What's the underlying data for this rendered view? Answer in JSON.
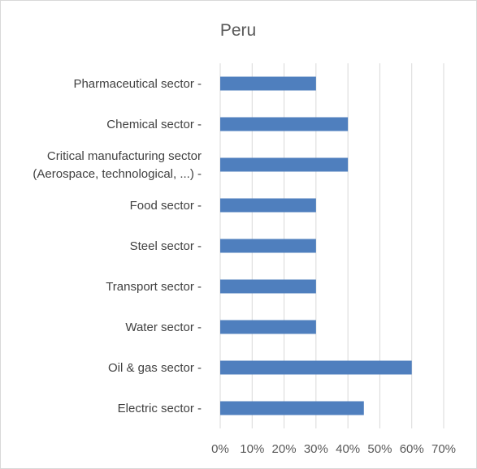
{
  "chart_data": {
    "type": "bar",
    "orientation": "horizontal",
    "title": "Peru",
    "xlabel": "",
    "ylabel": "",
    "categories": [
      [
        "Pharmaceutical sector -"
      ],
      [
        "Chemical sector -"
      ],
      [
        "Critical manufacturing sector",
        "(Aerospace, technological, ...) -"
      ],
      [
        "Food sector -"
      ],
      [
        "Steel sector -"
      ],
      [
        "Transport sector -"
      ],
      [
        "Water sector -"
      ],
      [
        "Oil & gas sector -"
      ],
      [
        "Electric sector -"
      ]
    ],
    "values": [
      0.3,
      0.4,
      0.4,
      0.3,
      0.3,
      0.3,
      0.3,
      0.6,
      0.45
    ],
    "xlim": [
      0,
      0.7
    ],
    "x_ticks": [
      "0%",
      "10%",
      "20%",
      "30%",
      "40%",
      "50%",
      "60%",
      "70%"
    ],
    "grid": true,
    "bar_color": "#4f7fbe"
  }
}
